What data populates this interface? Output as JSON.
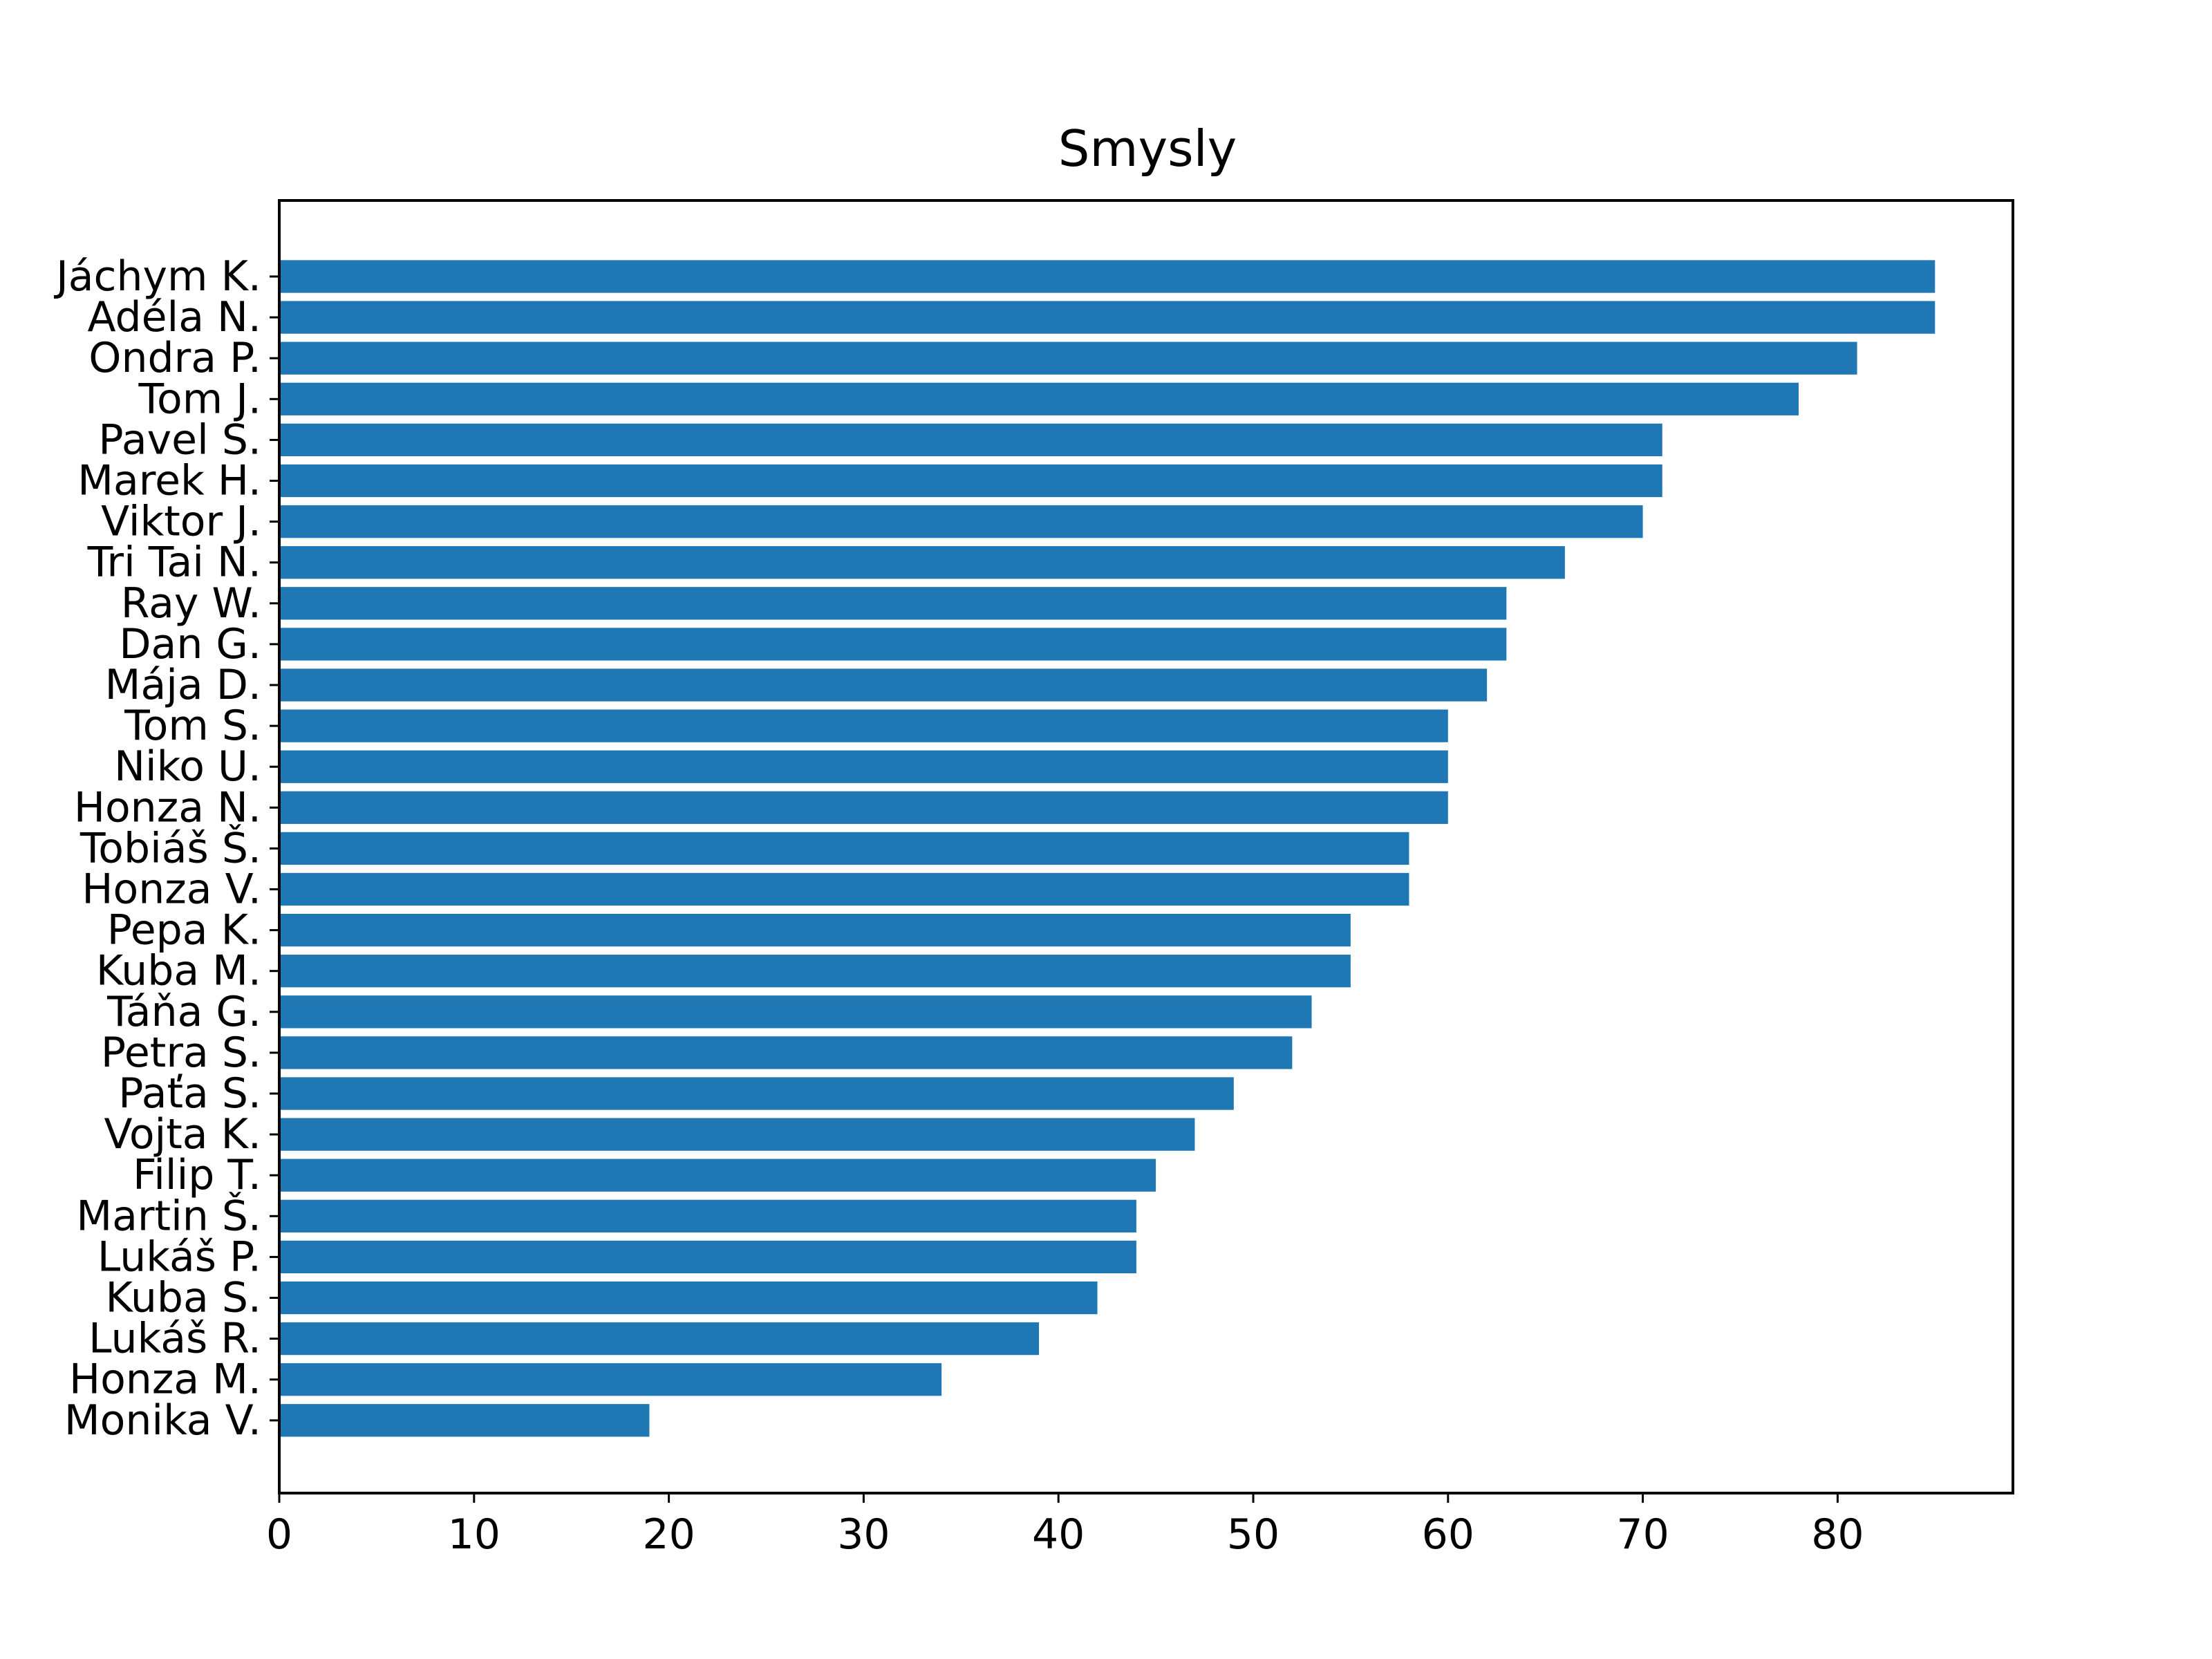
{
  "chart_data": {
    "type": "bar",
    "orientation": "horizontal",
    "title": "Smysly",
    "xlabel": "",
    "ylabel": "",
    "xlim": [
      0,
      89
    ],
    "xticks": [
      0,
      10,
      20,
      30,
      40,
      50,
      60,
      70,
      80
    ],
    "grid": false,
    "bar_color": "#1f77b4",
    "categories": [
      "Jáchym K.",
      "Adéla N.",
      "Ondra P.",
      "Tom J.",
      "Pavel S.",
      "Marek H.",
      "Viktor J.",
      "Tri Tai N.",
      "Ray W.",
      "Dan G.",
      "Mája D.",
      "Tom S.",
      "Niko U.",
      "Honza N.",
      "Tobiáš Š.",
      "Honza V.",
      "Pepa K.",
      "Kuba M.",
      "Táňa G.",
      "Petra S.",
      "Paťa S.",
      "Vojta K.",
      "Filip T.",
      "Martin Š.",
      "Lukáš P.",
      "Kuba S.",
      "Lukáš R.",
      "Honza M.",
      "Monika V."
    ],
    "values": [
      85,
      85,
      81,
      78,
      71,
      71,
      70,
      66,
      63,
      63,
      62,
      60,
      60,
      60,
      58,
      58,
      55,
      55,
      53,
      52,
      49,
      47,
      45,
      44,
      44,
      42,
      39,
      34,
      19
    ]
  }
}
